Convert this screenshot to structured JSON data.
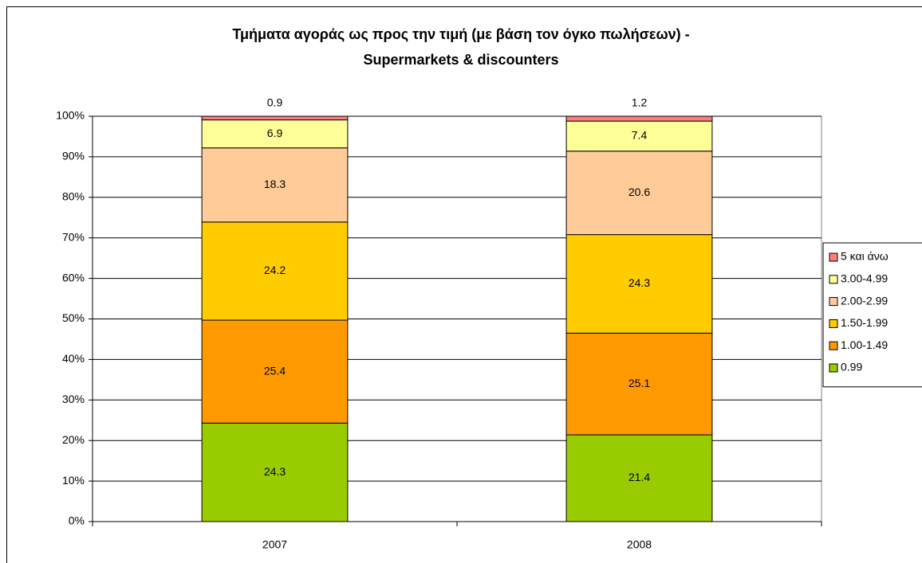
{
  "chart_data": {
    "type": "stacked_bar",
    "title": [
      "Τμήματα αγοράς ως προς την τιμή (με βάση τον όγκο πωλήσεων) -",
      "Supermarkets & discounters"
    ],
    "categories": [
      "2007",
      "2008"
    ],
    "series": [
      {
        "name": "0.99",
        "color": "#99cc00",
        "values": [
          24.3,
          21.4
        ]
      },
      {
        "name": "1.00-1.49",
        "color": "#ff9900",
        "values": [
          25.4,
          25.1
        ]
      },
      {
        "name": "1.50-1.99",
        "color": "#ffcc00",
        "values": [
          24.2,
          24.3
        ]
      },
      {
        "name": "2.00-2.99",
        "color": "#ffcc99",
        "values": [
          18.3,
          20.6
        ]
      },
      {
        "name": "3.00-4.99",
        "color": "#ffff99",
        "values": [
          6.9,
          7.4
        ]
      },
      {
        "name": "5 και άνω",
        "color": "#ff7c80",
        "values": [
          0.9,
          1.2
        ]
      }
    ],
    "ylim": [
      0,
      100
    ],
    "yticks": [
      {
        "value": 0,
        "label": "0%"
      },
      {
        "value": 10,
        "label": "10%"
      },
      {
        "value": 20,
        "label": "20%"
      },
      {
        "value": 30,
        "label": "30%"
      },
      {
        "value": 40,
        "label": "40%"
      },
      {
        "value": 50,
        "label": "50%"
      },
      {
        "value": 60,
        "label": "60%"
      },
      {
        "value": 70,
        "label": "70%"
      },
      {
        "value": 80,
        "label": "80%"
      },
      {
        "value": 90,
        "label": "90%"
      },
      {
        "value": 100,
        "label": "100%"
      }
    ],
    "grid": true,
    "legend": "right"
  }
}
